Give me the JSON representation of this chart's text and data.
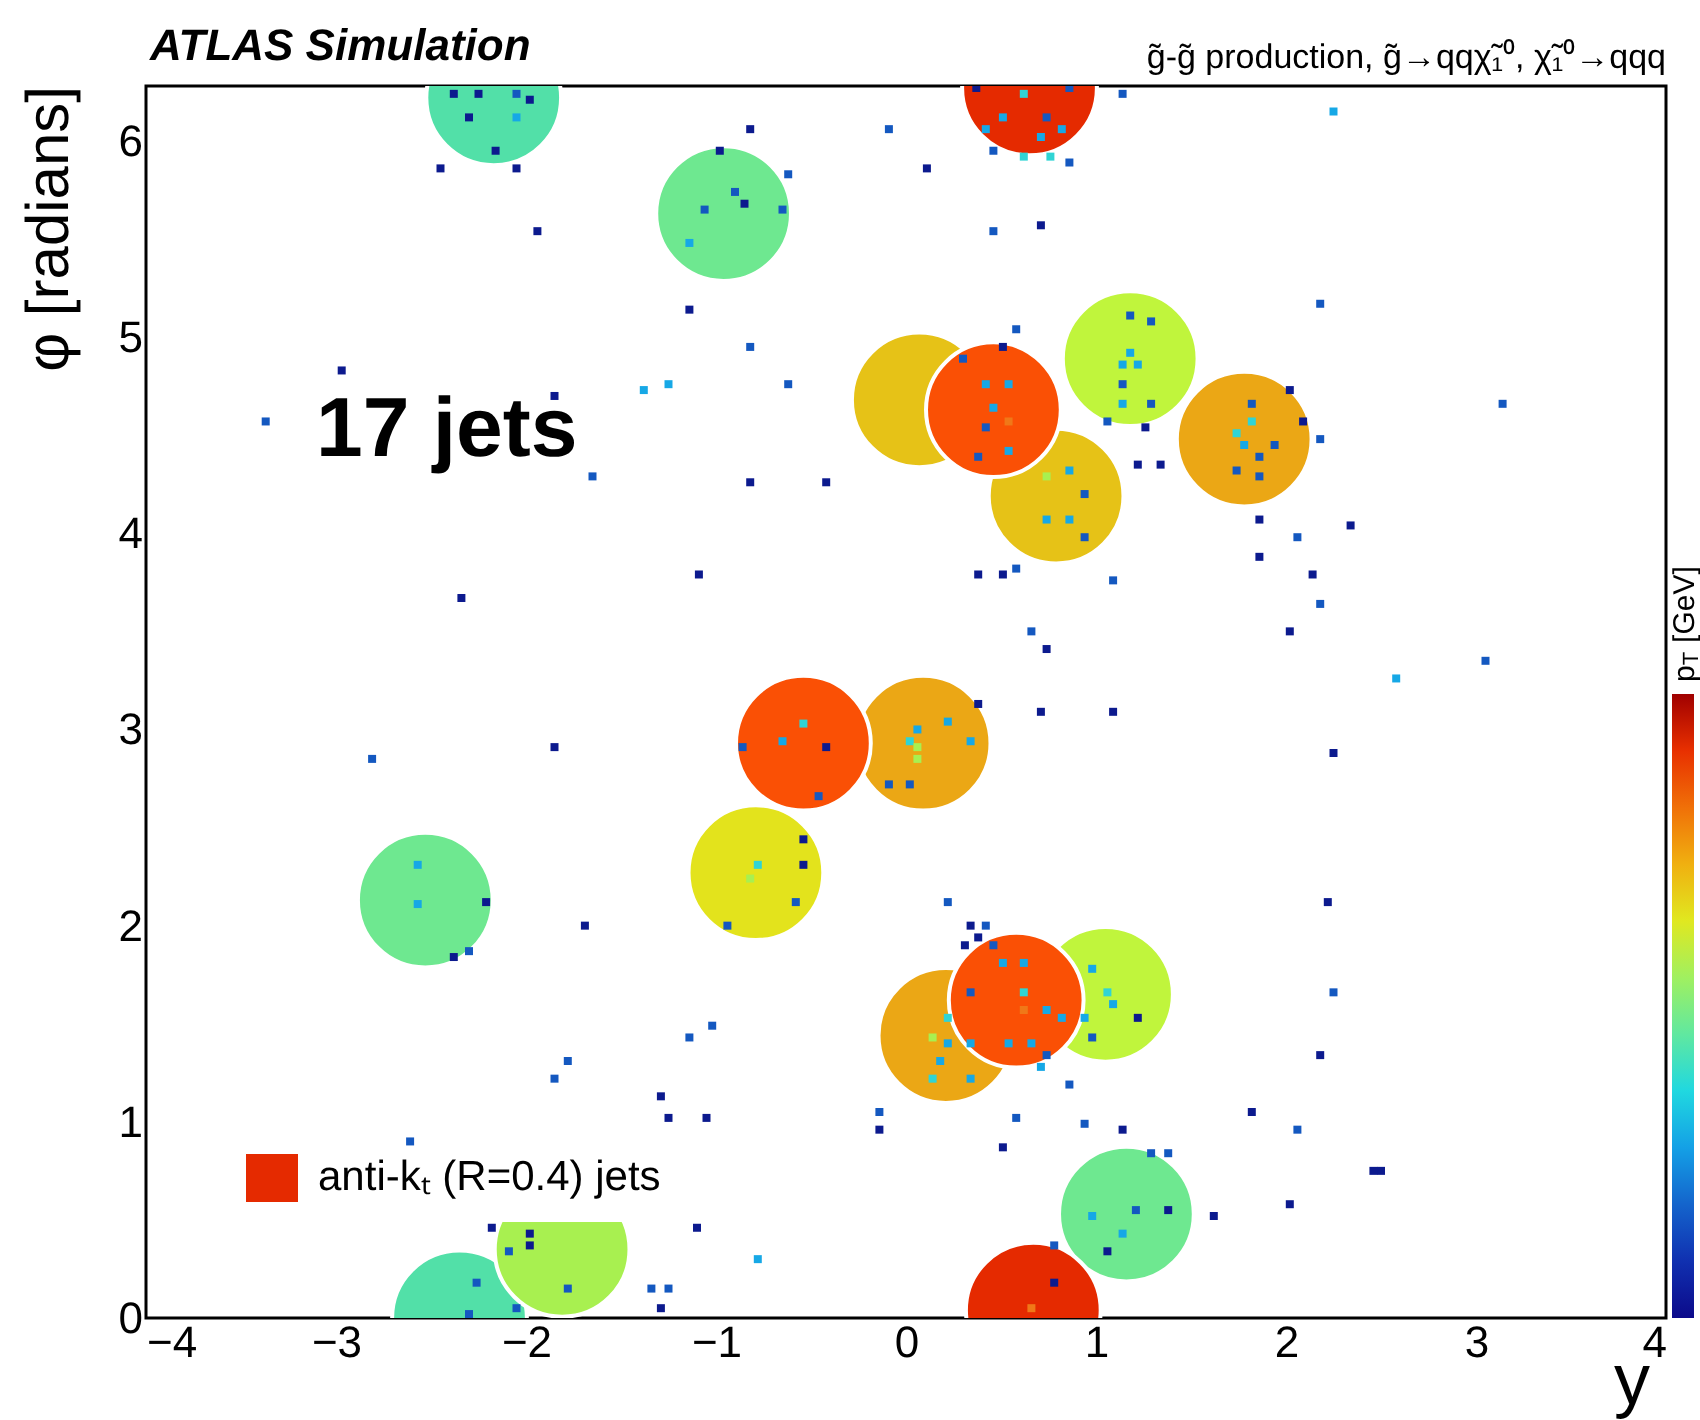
{
  "chart_data": {
    "type": "scatter",
    "title": "ATLAS Simulation",
    "subtitle": "g̃-g̃ production, g̃→qqχ̃₁⁰, χ̃₁⁰→qqq",
    "xlabel": "y",
    "ylabel": "φ [radians]",
    "clabel": "p$_{T}$ [GeV]",
    "annotations": [
      "17 jets"
    ],
    "legend": "bottom left",
    "xlim": [
      -4,
      4
    ],
    "ylim": [
      0,
      6.28
    ],
    "xticks": [
      -4,
      -3,
      -2,
      -1,
      0,
      1,
      2,
      3,
      4
    ],
    "yticks": [
      0,
      1,
      2,
      3,
      4,
      5,
      6
    ],
    "series": [
      {
        "name": "anti-kₜ (R=0.4) jets",
        "type": "bubble",
        "color": "#e52a00",
        "x": [
          -2.17,
          -0.96,
          -2.53,
          1.16,
          -2.35,
          1.18,
          1.05,
          -1.81,
          0.07,
          0.79,
          -0.79,
          1.78,
          0.09,
          0.21,
          0.46,
          -0.54,
          0.58,
          0.65,
          0.67
        ],
        "values": [
          6.22,
          5.63,
          2.13,
          0.53,
          0.0,
          4.89,
          1.65,
          0.35,
          4.68,
          4.19,
          2.27,
          4.48,
          2.93,
          1.44,
          4.63,
          2.93,
          1.62,
          6.27,
          0.04
        ],
        "sizes": [
          1,
          1,
          1,
          1,
          1,
          1,
          1,
          1,
          1,
          1,
          1,
          1,
          1,
          1,
          1,
          1,
          1,
          1,
          1
        ],
        "colors": [
          "#52e0a8",
          "#6ee890",
          "#6ee890",
          "#6ee890",
          "#52e0a8",
          "#c0f53c",
          "#c0f53c",
          "#a8f050",
          "#e6c217",
          "#e6c217",
          "#e3e31c",
          "#eba715",
          "#eba715",
          "#eba715",
          "#fa5005",
          "#fa5005",
          "#fa5005",
          "#e52a00",
          "#e52a00"
        ]
      },
      {
        "type": "scatter",
        "marker": "square",
        "x": [
          -2.38,
          -2.25,
          -2.05,
          -1.98,
          -2.3,
          -2.05,
          -2.16,
          -2.45,
          -2.05,
          -1.94,
          -0.82,
          -0.09,
          -0.98,
          -0.62,
          -0.9,
          -0.85,
          -1.06,
          -0.65,
          -1.14,
          -1.14,
          -0.82,
          -2.97,
          -3.37,
          -1.85,
          -1.38,
          -1.25,
          -0.62,
          -1.65,
          -0.82,
          -0.42,
          -2.34,
          -1.09,
          0.37,
          0.86,
          1.14,
          2.25,
          0.11,
          0.46,
          0.71,
          0.58,
          2.18,
          3.14,
          2.02,
          2.09,
          2.18,
          2.34,
          2.06,
          1.86,
          1.86,
          2.14,
          2.18,
          2.02,
          3.05,
          2.58,
          0.38,
          0.51,
          0.58,
          1.09,
          0.66,
          0.74,
          1.22,
          1.34,
          1.06,
          1.26,
          0.3,
          0.42,
          0.54,
          0.46,
          0.54,
          0.42,
          0.38,
          0.54,
          0.51,
          1.18,
          1.29,
          1.18,
          1.14,
          1.22,
          1.14,
          1.14,
          1.29,
          1.82,
          1.82,
          1.74,
          1.78,
          1.94,
          1.86,
          1.74,
          1.86,
          0.74,
          0.86,
          0.94,
          0.74,
          0.86,
          0.94,
          -2.81,
          -1.85,
          -1.69,
          -2.21,
          -2.38,
          -2.3,
          -2.57,
          -2.57,
          -1.02,
          -1.14,
          -1.78,
          -1.85,
          -1.29,
          -1.25,
          -1.05,
          -2.61,
          -0.14,
          -0.14,
          -1.1,
          -0.78,
          -1.34,
          -1.25,
          -1.29,
          -2.18,
          -1.98,
          -1.98,
          -2.09,
          -1.78,
          -2.26,
          -2.05,
          -2.3,
          -0.86,
          -0.42,
          -0.46,
          -0.54,
          -0.54,
          -0.65,
          -0.54,
          -0.94,
          -0.58,
          -0.78,
          -0.82,
          0.38,
          0.71,
          1.09,
          2.25,
          2.22,
          2.25,
          2.18,
          1.82,
          2.06,
          2.46,
          2.5,
          2.02,
          1.62,
          0.22,
          0.34,
          0.42,
          0.38,
          0.31,
          0.46,
          1.22,
          0.86,
          0.58,
          0.94,
          1.14,
          0.51,
          1.29,
          1.38,
          1.21,
          1.38,
          0.98,
          1.14,
          1.06,
          0.78,
          0.78,
          0.66,
          0.51,
          0.62,
          0.34,
          0.62,
          0.62,
          0.74,
          0.82,
          0.94,
          0.34,
          0.54,
          0.66,
          0.74,
          0.71,
          0.34,
          0.98,
          1.06,
          1.09,
          0.98,
          0.22,
          0.14,
          0.22,
          0.18,
          0.14,
          0.06,
          0.22,
          0.02,
          0.34,
          0.06,
          0.06,
          -0.09,
          0.02,
          0.51,
          0.74,
          0.42,
          0.82,
          0.71,
          0.46,
          0.62,
          0.76,
          0.86,
          0.62
        ],
        "values": [
          6.24,
          6.24,
          6.24,
          6.21,
          6.12,
          6.12,
          5.95,
          5.86,
          5.86,
          5.54,
          6.06,
          6.06,
          5.95,
          5.83,
          5.74,
          5.68,
          5.65,
          5.65,
          5.48,
          5.14,
          4.95,
          4.83,
          4.57,
          4.7,
          4.73,
          4.76,
          4.76,
          4.29,
          4.26,
          4.26,
          3.67,
          3.79,
          6.27,
          6.27,
          6.24,
          6.15,
          5.86,
          5.54,
          5.57,
          5.04,
          5.17,
          4.66,
          4.73,
          4.57,
          4.48,
          4.04,
          3.98,
          4.07,
          3.88,
          3.79,
          3.64,
          3.5,
          3.35,
          3.26,
          3.79,
          3.79,
          3.82,
          3.76,
          3.5,
          3.41,
          4.35,
          4.35,
          4.57,
          4.54,
          4.89,
          4.76,
          4.76,
          4.64,
          4.57,
          4.54,
          4.39,
          4.42,
          4.95,
          5.11,
          5.08,
          4.92,
          4.86,
          4.86,
          4.76,
          4.66,
          4.66,
          4.66,
          4.57,
          4.51,
          4.45,
          4.45,
          4.39,
          4.32,
          4.29,
          4.29,
          4.32,
          4.2,
          4.07,
          4.07,
          3.98,
          2.85,
          2.91,
          2.0,
          2.12,
          1.84,
          1.87,
          2.31,
          2.11,
          1.49,
          1.43,
          1.31,
          1.22,
          1.13,
          1.02,
          1.02,
          0.9,
          1.05,
          0.96,
          0.46,
          0.3,
          0.15,
          0.15,
          0.05,
          0.46,
          0.43,
          0.37,
          0.34,
          0.15,
          0.18,
          0.05,
          0.02,
          2.91,
          2.91,
          2.66,
          2.44,
          3.03,
          2.94,
          2.31,
          2.0,
          2.12,
          2.31,
          2.24,
          3.13,
          3.09,
          3.09,
          2.88,
          2.12,
          1.66,
          1.34,
          1.05,
          0.96,
          0.75,
          0.75,
          0.58,
          0.52,
          2.12,
          2.0,
          2.0,
          1.94,
          1.9,
          1.9,
          1.53,
          1.19,
          1.02,
          0.99,
          0.96,
          0.87,
          0.84,
          0.84,
          0.55,
          0.55,
          0.52,
          0.43,
          0.34,
          0.37,
          0.18,
          0.05,
          1.81,
          1.81,
          1.66,
          1.66,
          1.57,
          1.57,
          1.53,
          1.53,
          1.4,
          1.4,
          1.4,
          1.34,
          1.28,
          1.22,
          1.78,
          1.66,
          1.6,
          1.43,
          1.53,
          1.43,
          1.4,
          1.31,
          1.22,
          3.0,
          3.04,
          2.94,
          2.94,
          2.91,
          2.85,
          2.72,
          2.72,
          6.12,
          6.12,
          6.06,
          6.06,
          6.02,
          5.95,
          5.92,
          5.92,
          5.89,
          6.24
        ],
        "colors": [
          "#0c1a8e",
          "#0c1a8e",
          "#1458c0",
          "#0c1a8e",
          "#0c1a8e",
          "#16a8e6",
          "#0c1a8e",
          "#0c1a8e",
          "#0c1a8e",
          "#0c1a8e",
          "#0c1a8e",
          "#1458c0",
          "#0c1a8e",
          "#1458c0",
          "#1458c0",
          "#0c1a8e",
          "#1458c0",
          "#1458c0",
          "#16a8e6",
          "#0c1a8e",
          "#1458c0",
          "#0c1a8e",
          "#1458c0",
          "#0c1a8e",
          "#16a8e6",
          "#16a8e6",
          "#1458c0",
          "#1458c0",
          "#0c1a8e",
          "#0c1a8e",
          "#0c1a8e",
          "#0c1a8e",
          "#0c1a8e",
          "#1458c0",
          "#1458c0",
          "#16a8e6",
          "#0c1a8e",
          "#1458c0",
          "#0c1a8e",
          "#1458c0",
          "#1458c0",
          "#1458c0",
          "#0c1a8e",
          "#0c1a8e",
          "#1458c0",
          "#0c1a8e",
          "#1458c0",
          "#0c1a8e",
          "#0c1a8e",
          "#0c1a8e",
          "#1458c0",
          "#0c1a8e",
          "#1458c0",
          "#16a8e6",
          "#0c1a8e",
          "#0c1a8e",
          "#1458c0",
          "#1458c0",
          "#1458c0",
          "#0c1a8e",
          "#0c1a8e",
          "#0c1a8e",
          "#1458c0",
          "#0c1a8e",
          "#1458c0",
          "#16a8e6",
          "#16a8e6",
          "#16a8e6",
          "#f07818",
          "#1458c0",
          "#1458c0",
          "#16a8e6",
          "#0c1a8e",
          "#1458c0",
          "#1458c0",
          "#16a8e6",
          "#16a8e6",
          "#16a8e6",
          "#1458c0",
          "#16a8e6",
          "#1458c0",
          "#1458c0",
          "#30d4d4",
          "#30d4d4",
          "#16a8e6",
          "#1458c0",
          "#1458c0",
          "#1458c0",
          "#1458c0",
          "#a8f050",
          "#16a8e6",
          "#1458c0",
          "#16a8e6",
          "#16a8e6",
          "#1458c0",
          "#1458c0",
          "#0c1a8e",
          "#0c1a8e",
          "#0c1a8e",
          "#0c1a8e",
          "#1458c0",
          "#16a8e6",
          "#16a8e6",
          "#1458c0",
          "#1458c0",
          "#1458c0",
          "#1458c0",
          "#0c1a8e",
          "#0c1a8e",
          "#0c1a8e",
          "#1458c0",
          "#1458c0",
          "#0c1a8e",
          "#0c1a8e",
          "#16a8e6",
          "#1458c0",
          "#1458c0",
          "#0c1a8e",
          "#0c1a8e",
          "#0c1a8e",
          "#0c1a8e",
          "#1458c0",
          "#1458c0",
          "#1458c0",
          "#1458c0",
          "#1458c0",
          "#1458c0",
          "#0c1a8e",
          "#1458c0",
          "#0c1a8e",
          "#30d4d4",
          "#16a8e6",
          "#0c1a8e",
          "#1458c0",
          "#1458c0",
          "#30d4d4",
          "#a8f050",
          "#0c1a8e",
          "#0c1a8e",
          "#0c1a8e",
          "#0c1a8e",
          "#0c1a8e",
          "#1458c0",
          "#0c1a8e",
          "#0c1a8e",
          "#1458c0",
          "#0c1a8e",
          "#0c1a8e",
          "#0c1a8e",
          "#0c1a8e",
          "#1458c0",
          "#0c1a8e",
          "#1458c0",
          "#0c1a8e",
          "#0c1a8e",
          "#1458c0",
          "#0c1a8e",
          "#1458c0",
          "#1458c0",
          "#1458c0",
          "#0c1a8e",
          "#0c1a8e",
          "#1458c0",
          "#1458c0",
          "#1458c0",
          "#0c1a8e",
          "#16a8e6",
          "#16a8e6",
          "#0c1a8e",
          "#1458c0",
          "#0c1a8e",
          "#f07818",
          "#16a8e6",
          "#16a8e6",
          "#1458c0",
          "#30d4d4",
          "#f07818",
          "#16a8e6",
          "#16a8e6",
          "#16a8e6",
          "#16a8e6",
          "#16a8e6",
          "#16a8e6",
          "#1458c0",
          "#16a8e6",
          "#16a8e6",
          "#16a8e6",
          "#30d4d4",
          "#16a8e6",
          "#1458c0",
          "#30d4d4",
          "#a8f050",
          "#16a8e6",
          "#16a8e6",
          "#30d4d4",
          "#16a8e6",
          "#16a8e6",
          "#30d4d4",
          "#16a8e6",
          "#a8f050",
          "#a8f050",
          "#1458c0",
          "#1458c0",
          "#16a8e6",
          "#1458c0",
          "#16a8e6",
          "#16a8e6",
          "#16a8e6",
          "#1458c0",
          "#30d4d4",
          "#30d4d4",
          "#1458c0",
          "#30d4d4"
        ]
      }
    ]
  }
}
